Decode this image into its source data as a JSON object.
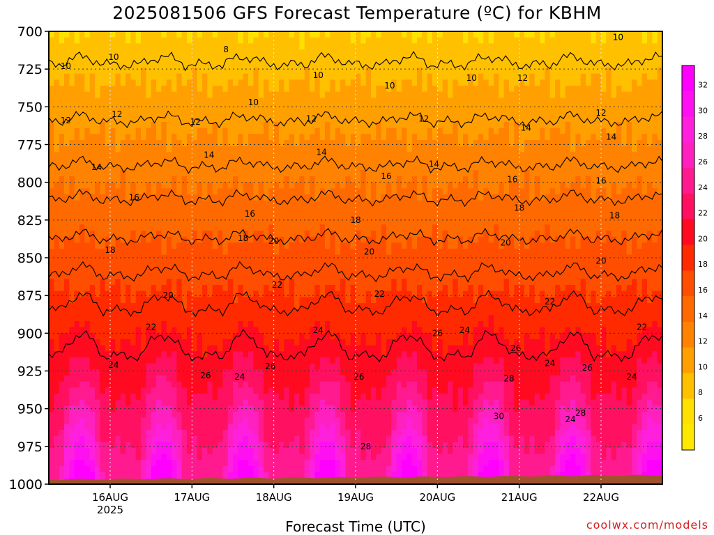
{
  "title": "2025081506 GFS Forecast Temperature (ºC) for KBHM",
  "credit": "coolwx.com/models",
  "chart_data": {
    "type": "heatmap",
    "title": "2025081506 GFS Forecast Temperature (ºC) for KBHM",
    "xlabel": "Forecast Time (UTC)",
    "ylabel": "",
    "y_axis": {
      "ticks": [
        700,
        725,
        750,
        775,
        800,
        825,
        850,
        875,
        900,
        925,
        950,
        975,
        1000
      ],
      "range": [
        700,
        1000
      ],
      "inverted": true
    },
    "x_axis": {
      "range_hours": [
        0,
        180
      ],
      "ticks": [
        {
          "label": "16AUG",
          "sub": "2025",
          "hour": 18
        },
        {
          "label": "17AUG",
          "sub": "",
          "hour": 42
        },
        {
          "label": "18AUG",
          "sub": "",
          "hour": 66
        },
        {
          "label": "19AUG",
          "sub": "",
          "hour": 90
        },
        {
          "label": "20AUG",
          "sub": "",
          "hour": 114
        },
        {
          "label": "21AUG",
          "sub": "",
          "hour": 138
        },
        {
          "label": "22AUG",
          "sub": "",
          "hour": 162
        }
      ]
    },
    "grid": true,
    "colorbar": {
      "levels": [
        32,
        30,
        28,
        26,
        24,
        22,
        20,
        18,
        16,
        14,
        12,
        10,
        8,
        6
      ],
      "colors": {
        "32": "#ff00ff",
        "30": "#ff10f0",
        "28": "#ff20dd",
        "26": "#ff20c0",
        "24": "#ff1a90",
        "22": "#ff1060",
        "20": "#ff0a20",
        "18": "#ff2a00",
        "16": "#ff4e00",
        "14": "#ff6a00",
        "12": "#ff8200",
        "10": "#ffa000",
        "8": "#ffc000",
        "6": "#ffe000",
        "4": "#ffe800"
      }
    },
    "contour_lines": [
      {
        "temp": 10,
        "base_p": 722,
        "amp": 5
      },
      {
        "temp": 12,
        "base_p": 760,
        "amp": 4
      },
      {
        "temp": 14,
        "base_p": 790,
        "amp": 4
      },
      {
        "temp": 16,
        "base_p": 812,
        "amp": 4
      },
      {
        "temp": 18,
        "base_p": 838,
        "amp": 4
      },
      {
        "temp": 20,
        "base_p": 862,
        "amp": 6
      },
      {
        "temp": 22,
        "base_p": 885,
        "amp": 10
      },
      {
        "temp": 24,
        "base_p": 915,
        "amp": 14
      }
    ],
    "contour_labels": [
      {
        "text": "8",
        "hour": 52,
        "p": 712
      },
      {
        "text": "10",
        "hour": 5,
        "p": 723
      },
      {
        "text": "10",
        "hour": 19,
        "p": 717
      },
      {
        "text": "10",
        "hour": 100,
        "p": 736
      },
      {
        "text": "10",
        "hour": 124,
        "p": 731
      },
      {
        "text": "10",
        "hour": 167,
        "p": 704
      },
      {
        "text": "10",
        "hour": 60,
        "p": 747
      },
      {
        "text": "10",
        "hour": 79,
        "p": 729
      },
      {
        "text": "12",
        "hour": 5,
        "p": 759
      },
      {
        "text": "12",
        "hour": 20,
        "p": 755
      },
      {
        "text": "12",
        "hour": 43,
        "p": 760
      },
      {
        "text": "12",
        "hour": 77,
        "p": 758
      },
      {
        "text": "12",
        "hour": 110,
        "p": 758
      },
      {
        "text": "12",
        "hour": 139,
        "p": 731
      },
      {
        "text": "12",
        "hour": 162,
        "p": 754
      },
      {
        "text": "14",
        "hour": 14,
        "p": 790
      },
      {
        "text": "14",
        "hour": 47,
        "p": 782
      },
      {
        "text": "14",
        "hour": 80,
        "p": 780
      },
      {
        "text": "14",
        "hour": 113,
        "p": 788
      },
      {
        "text": "14",
        "hour": 140,
        "p": 764
      },
      {
        "text": "14",
        "hour": 165,
        "p": 770
      },
      {
        "text": "16",
        "hour": 25,
        "p": 810
      },
      {
        "text": "16",
        "hour": 59,
        "p": 821
      },
      {
        "text": "16",
        "hour": 99,
        "p": 796
      },
      {
        "text": "16",
        "hour": 136,
        "p": 798
      },
      {
        "text": "16",
        "hour": 162,
        "p": 799
      },
      {
        "text": "18",
        "hour": 18,
        "p": 845
      },
      {
        "text": "18",
        "hour": 57,
        "p": 837
      },
      {
        "text": "18",
        "hour": 90,
        "p": 825
      },
      {
        "text": "18",
        "hour": 138,
        "p": 817
      },
      {
        "text": "18",
        "hour": 166,
        "p": 822
      },
      {
        "text": "20",
        "hour": 35,
        "p": 875
      },
      {
        "text": "20",
        "hour": 66,
        "p": 839
      },
      {
        "text": "20",
        "hour": 94,
        "p": 846
      },
      {
        "text": "20",
        "hour": 134,
        "p": 840
      },
      {
        "text": "20",
        "hour": 162,
        "p": 852
      },
      {
        "text": "22",
        "hour": 30,
        "p": 896
      },
      {
        "text": "22",
        "hour": 67,
        "p": 868
      },
      {
        "text": "22",
        "hour": 97,
        "p": 874
      },
      {
        "text": "22",
        "hour": 147,
        "p": 879
      },
      {
        "text": "22",
        "hour": 174,
        "p": 896
      },
      {
        "text": "24",
        "hour": 19,
        "p": 921
      },
      {
        "text": "24",
        "hour": 56,
        "p": 929
      },
      {
        "text": "24",
        "hour": 79,
        "p": 898
      },
      {
        "text": "24",
        "hour": 122,
        "p": 898
      },
      {
        "text": "24",
        "hour": 147,
        "p": 920
      },
      {
        "text": "24",
        "hour": 171,
        "p": 929
      },
      {
        "text": "24",
        "hour": 153,
        "p": 957
      },
      {
        "text": "26",
        "hour": 46,
        "p": 928
      },
      {
        "text": "26",
        "hour": 65,
        "p": 922
      },
      {
        "text": "26",
        "hour": 91,
        "p": 929
      },
      {
        "text": "26",
        "hour": 114,
        "p": 900
      },
      {
        "text": "26",
        "hour": 137,
        "p": 910
      },
      {
        "text": "26",
        "hour": 158,
        "p": 923
      },
      {
        "text": "28",
        "hour": 135,
        "p": 930
      },
      {
        "text": "28",
        "hour": 93,
        "p": 975
      },
      {
        "text": "28",
        "hour": 156,
        "p": 953
      },
      {
        "text": "30",
        "hour": 132,
        "p": 955
      }
    ]
  }
}
